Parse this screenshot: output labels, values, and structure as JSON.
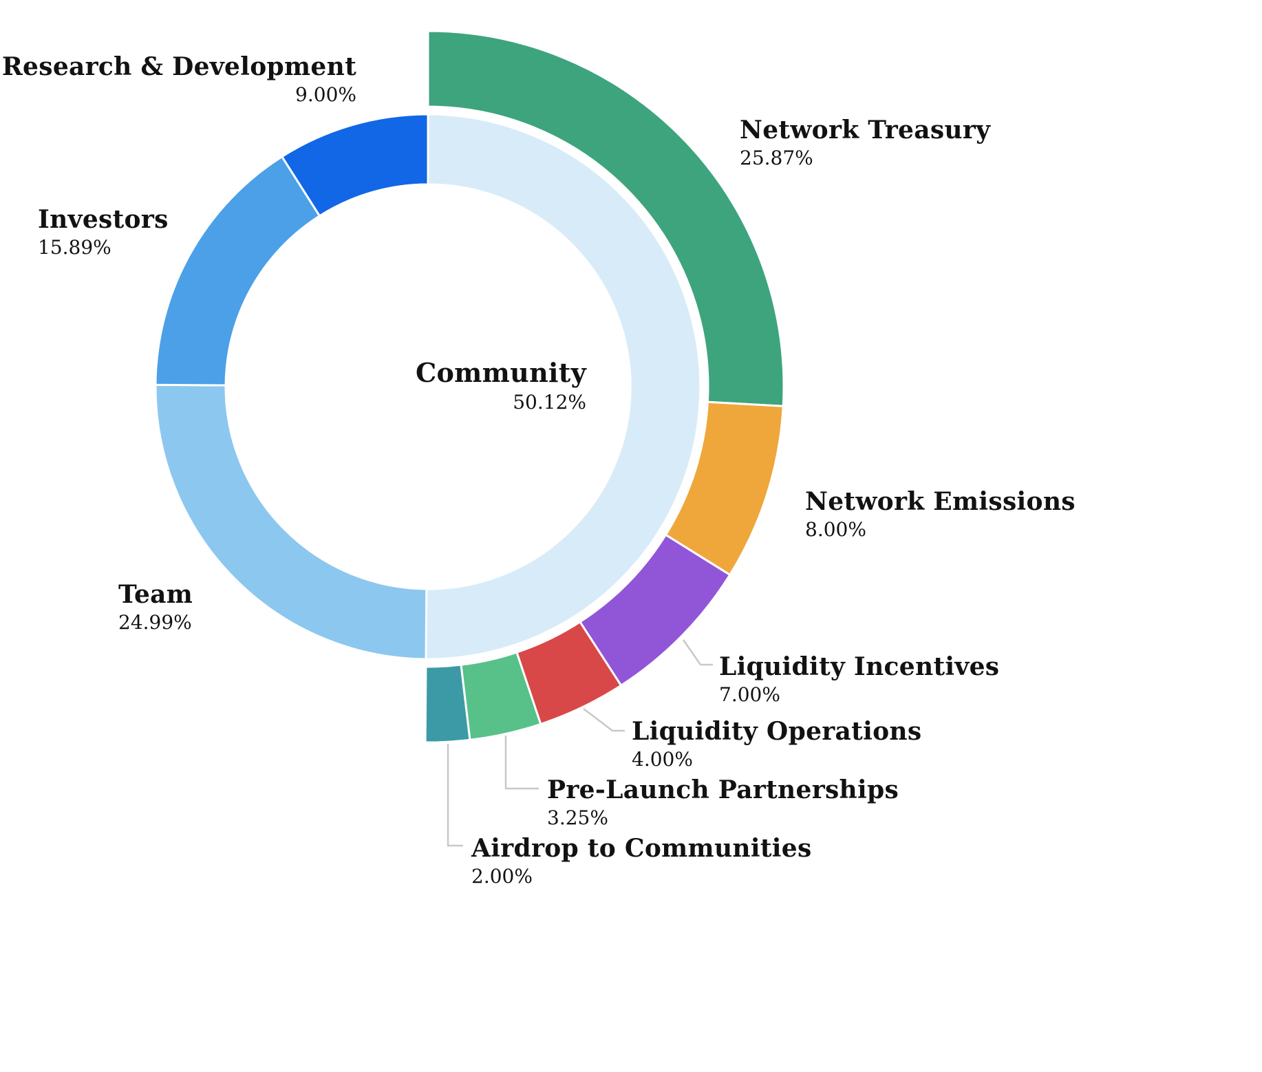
{
  "chart_data": {
    "type": "donut",
    "title": "",
    "legend": "none",
    "rings": 2,
    "inner_ring": [
      {
        "label": "Community",
        "value": 50.12,
        "display": "50.12%",
        "color": "#D8EBF9"
      },
      {
        "label": "Team",
        "value": 24.99,
        "display": "24.99%",
        "color": "#8CC7F0"
      },
      {
        "label": "Investors",
        "value": 15.89,
        "display": "15.89%",
        "color": "#4BA0E8"
      },
      {
        "label": "Research & Development",
        "value": 9.0,
        "display": "9.00%",
        "color": "#1167E6"
      }
    ],
    "outer_ring": [
      {
        "label": "Network Treasury",
        "value": 25.87,
        "display": "25.87%",
        "color": "#3EA47E"
      },
      {
        "label": "Network Emissions",
        "value": 8.0,
        "display": "8.00%",
        "color": "#EFA73C"
      },
      {
        "label": "Liquidity Incentives",
        "value": 7.0,
        "display": "7.00%",
        "color": "#9156D8"
      },
      {
        "label": "Liquidity Operations",
        "value": 4.0,
        "display": "4.00%",
        "color": "#D94848"
      },
      {
        "label": "Pre-Launch Partnerships",
        "value": 3.25,
        "display": "3.25%",
        "color": "#57C189"
      },
      {
        "label": "Airdrop to Communities",
        "value": 2.0,
        "display": "2.00%",
        "color": "#3B9AA5"
      }
    ],
    "leader_line_color": "#C8C8C8",
    "text_color": "#121212",
    "background_color": "#FFFFFF"
  }
}
